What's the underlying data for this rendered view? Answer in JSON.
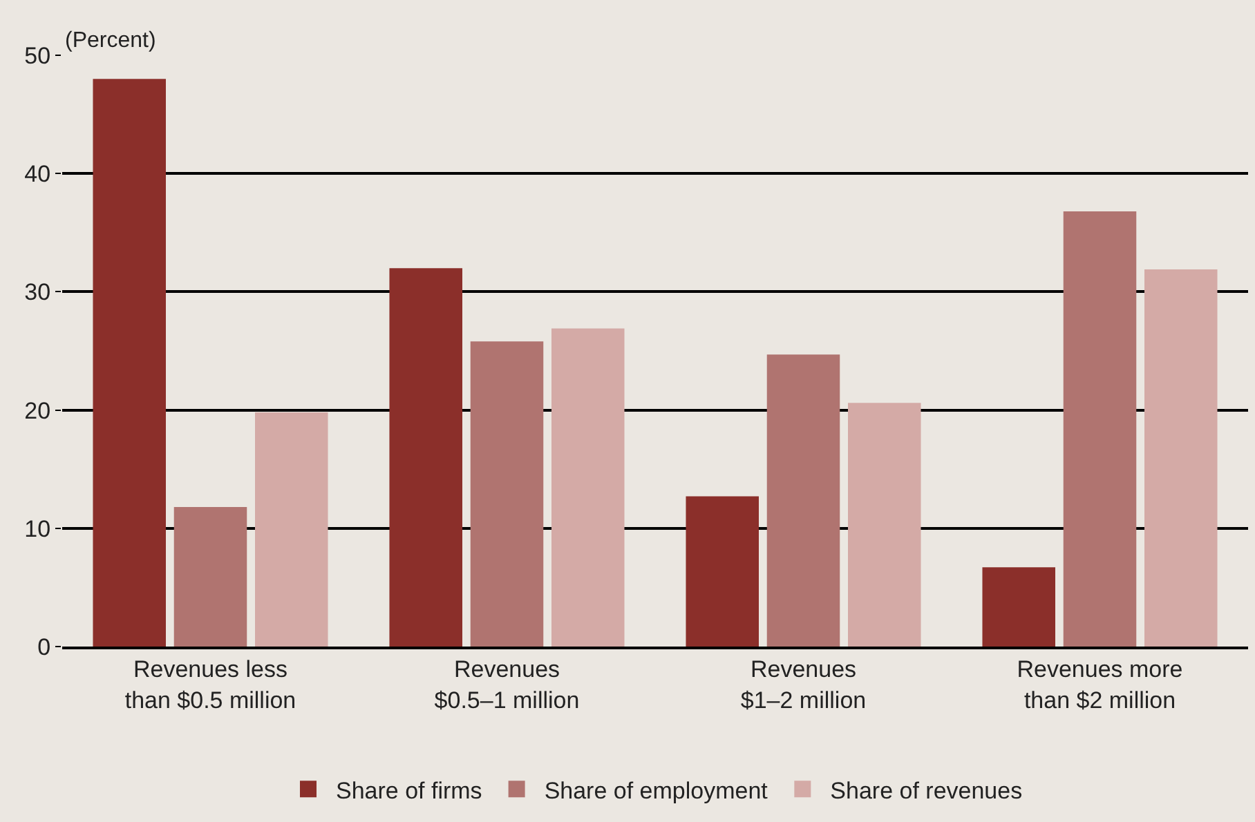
{
  "chart_data": {
    "type": "bar",
    "ylabel": "(Percent)",
    "categories": [
      "Revenues less\nthan $0.5 million",
      "Revenues\n$0.5–1 million",
      "Revenues\n$1–2 million",
      "Revenues more\nthan $2 million"
    ],
    "series": [
      {
        "name": "Share of firms",
        "color": "#8b2f2a",
        "values": [
          48,
          32,
          12.7,
          6.7
        ]
      },
      {
        "name": "Share of employment",
        "color": "#b07470",
        "values": [
          11.8,
          25.8,
          24.7,
          36.8
        ]
      },
      {
        "name": "Share of revenues",
        "color": "#d4aaa6",
        "values": [
          19.8,
          26.9,
          20.6,
          31.9
        ]
      }
    ],
    "ylim": [
      0,
      50
    ],
    "yticks": [
      0,
      10,
      20,
      30,
      40,
      50
    ],
    "grid": "y",
    "legend": "bottom"
  }
}
